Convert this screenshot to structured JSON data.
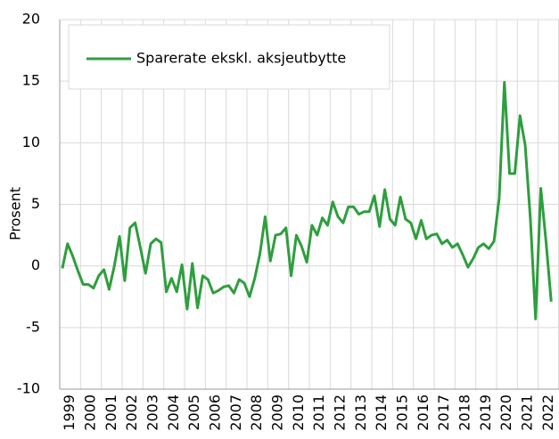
{
  "chart_data": {
    "type": "line",
    "y_label": "Prosent",
    "categories": [
      "1999",
      null,
      null,
      null,
      "2000",
      null,
      null,
      null,
      "2001",
      null,
      null,
      null,
      "2002",
      null,
      null,
      null,
      "2003",
      null,
      null,
      null,
      "2004",
      null,
      null,
      null,
      "2005",
      null,
      null,
      null,
      "2006",
      null,
      null,
      null,
      "2007",
      null,
      null,
      null,
      "2008",
      null,
      null,
      null,
      "2009",
      null,
      null,
      null,
      "2010",
      null,
      null,
      null,
      "2011",
      null,
      null,
      null,
      "2012",
      null,
      null,
      null,
      "2013",
      null,
      null,
      null,
      "2014",
      null,
      null,
      null,
      "2015",
      null,
      null,
      null,
      "2016",
      null,
      null,
      null,
      "2017",
      null,
      null,
      null,
      "2018",
      null,
      null,
      null,
      "2019",
      null,
      null,
      null,
      "2020",
      null,
      null,
      null,
      "2021",
      null,
      null,
      null,
      "2022",
      null,
      null
    ],
    "series": [
      {
        "name": "Sparerate ekskl. aksjeutbytte",
        "color": "#2e9e3e",
        "values": [
          -0.2,
          1.8,
          0.8,
          -0.4,
          -1.5,
          -1.5,
          -1.8,
          -0.8,
          -0.3,
          -1.9,
          0,
          2.4,
          -1.2,
          3.1,
          3.5,
          1.5,
          -0.6,
          1.8,
          2.2,
          1.9,
          -2.1,
          -1.0,
          -2.1,
          0.1,
          -3.5,
          0.2,
          -3.4,
          -0.8,
          -1.1,
          -2.2,
          -2.0,
          -1.7,
          -1.6,
          -2.2,
          -1.1,
          -1.4,
          -2.5,
          -1.0,
          1.0,
          4.0,
          0.4,
          2.5,
          2.6,
          3.1,
          -0.8,
          2.5,
          1.6,
          0.3,
          3.3,
          2.5,
          3.9,
          3.3,
          5.2,
          4.0,
          3.5,
          4.8,
          4.8,
          4.2,
          4.4,
          4.4,
          5.7,
          3.2,
          6.2,
          3.8,
          3.3,
          5.6,
          3.8,
          3.5,
          2.2,
          3.7,
          2.2,
          2.5,
          2.6,
          1.8,
          2.1,
          1.5,
          1.8,
          0.9,
          -0.1,
          0.6,
          1.5,
          1.8,
          1.4,
          2.0,
          5.5,
          14.9,
          7.5,
          7.5,
          12.2,
          9.8,
          3.8,
          -4.3,
          6.3,
          2.0,
          -2.9
        ]
      }
    ],
    "ylim": [
      -10,
      20
    ],
    "yticks": [
      -10,
      -5,
      0,
      5,
      10,
      15,
      20
    ],
    "grid": true,
    "legend": "upper left"
  }
}
